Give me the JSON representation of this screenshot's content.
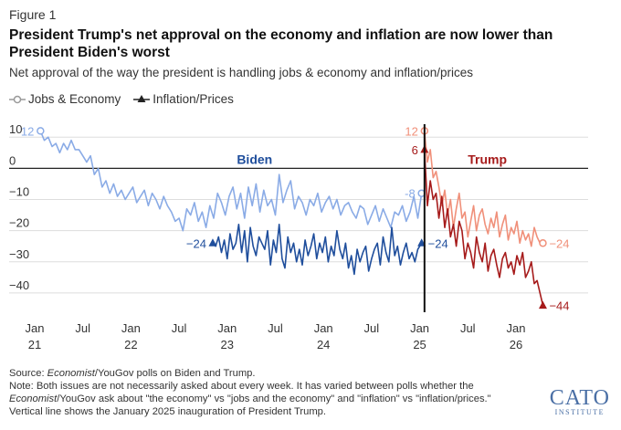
{
  "figure_label": "Figure 1",
  "title": "President Trump's net approval on the economy and inflation are now lower than President Biden's worst",
  "subtitle": "Net approval of the way the president is handling jobs & economy and inflation/prices",
  "colors": {
    "biden_jobs": "#8aabe6",
    "biden_inflation": "#1f4e9c",
    "trump_jobs": "#f0907a",
    "trump_inflation": "#a61b1b",
    "biden_label": "#1f4e9c",
    "trump_label": "#a61b1b"
  },
  "footer": {
    "source_prefix": "Source: ",
    "source_italic": "Economist",
    "source_rest": "/YouGov polls on Biden and Trump.",
    "note_1": "Note: Both issues are not necessarily asked about every week. It has varied between polls whether the",
    "note_2_italic": "Economist",
    "note_2_rest": "/YouGov ask about \"the economy\" vs \"jobs and the economy\" and \"inflation\" vs \"inflation/prices.\"",
    "note_3": "Vertical line shows the January 2025 inauguration of President Trump."
  },
  "logo": {
    "text": "CATO",
    "subtext": "INSTITUTE"
  },
  "chart_data": {
    "type": "line",
    "xlabel": "",
    "ylabel": "",
    "ylim": [
      -45,
      13
    ],
    "yticks": [
      10,
      0,
      -10,
      -20,
      -30,
      -40
    ],
    "xlim": [
      2021.0,
      2026.75
    ],
    "xticks": [
      {
        "x": 2021.0,
        "label": "Jan",
        "year": "21"
      },
      {
        "x": 2021.5,
        "label": "Jul",
        "year": ""
      },
      {
        "x": 2022.0,
        "label": "Jan",
        "year": "22"
      },
      {
        "x": 2022.5,
        "label": "Jul",
        "year": ""
      },
      {
        "x": 2023.0,
        "label": "Jan",
        "year": "23"
      },
      {
        "x": 2023.5,
        "label": "Jul",
        "year": ""
      },
      {
        "x": 2024.0,
        "label": "Jan",
        "year": "24"
      },
      {
        "x": 2024.5,
        "label": "Jul",
        "year": ""
      },
      {
        "x": 2025.0,
        "label": "Jan",
        "year": "25"
      },
      {
        "x": 2025.5,
        "label": "Jul",
        "year": ""
      },
      {
        "x": 2026.0,
        "label": "Jan",
        "year": "26"
      }
    ],
    "inauguration_x": 2025.05,
    "grid": "horizontal",
    "legend": {
      "placement": "top-left",
      "entries": [
        {
          "label": "Jobs & Economy",
          "marker": "circle"
        },
        {
          "label": "Inflation/Prices",
          "marker": "triangle"
        }
      ]
    },
    "period_labels": [
      {
        "text": "Biden",
        "x": 2023.1,
        "y": 1.5,
        "color_key": "biden_label"
      },
      {
        "text": "Trump",
        "x": 2025.5,
        "y": 1.5,
        "color_key": "trump_label"
      }
    ],
    "series": [
      {
        "period": "Biden",
        "metric": "Jobs & Economy",
        "color_key": "biden_jobs",
        "marker": "circle",
        "start_label": "12",
        "end_label": "-8",
        "x": [
          2021.06,
          2021.1,
          2021.14,
          2021.18,
          2021.22,
          2021.26,
          2021.3,
          2021.34,
          2021.38,
          2021.42,
          2021.46,
          2021.5,
          2021.54,
          2021.58,
          2021.62,
          2021.66,
          2021.7,
          2021.74,
          2021.78,
          2021.82,
          2021.86,
          2021.9,
          2021.94,
          2021.98,
          2022.02,
          2022.06,
          2022.1,
          2022.14,
          2022.18,
          2022.22,
          2022.26,
          2022.3,
          2022.34,
          2022.38,
          2022.42,
          2022.46,
          2022.5,
          2022.54,
          2022.58,
          2022.62,
          2022.66,
          2022.7,
          2022.74,
          2022.78,
          2022.82,
          2022.86,
          2022.9,
          2022.94,
          2022.98,
          2023.02,
          2023.06,
          2023.1,
          2023.14,
          2023.18,
          2023.22,
          2023.26,
          2023.3,
          2023.34,
          2023.38,
          2023.42,
          2023.46,
          2023.5,
          2023.54,
          2023.58,
          2023.62,
          2023.66,
          2023.7,
          2023.74,
          2023.78,
          2023.82,
          2023.86,
          2023.9,
          2023.94,
          2023.98,
          2024.02,
          2024.06,
          2024.1,
          2024.14,
          2024.18,
          2024.22,
          2024.26,
          2024.3,
          2024.34,
          2024.38,
          2024.42,
          2024.46,
          2024.5,
          2024.54,
          2024.58,
          2024.62,
          2024.66,
          2024.7,
          2024.74,
          2024.78,
          2024.82,
          2024.86,
          2024.9,
          2024.94,
          2024.98,
          2025.02
        ],
        "y": [
          12,
          9,
          10,
          7,
          8,
          5,
          8,
          6,
          9,
          6,
          6,
          4,
          2,
          4,
          -2,
          0,
          -6,
          -4,
          -8,
          -5,
          -9,
          -7,
          -10,
          -8,
          -6,
          -11,
          -9,
          -7,
          -12,
          -8,
          -10,
          -13,
          -9,
          -12,
          -14,
          -17,
          -16,
          -20,
          -13,
          -15,
          -11,
          -17,
          -14,
          -19,
          -12,
          -16,
          -8,
          -11,
          -15,
          -9,
          -6,
          -13,
          -8,
          -16,
          -6,
          -12,
          -5,
          -14,
          -7,
          -12,
          -10,
          -15,
          -2,
          -11,
          -7,
          -4,
          -13,
          -9,
          -11,
          -15,
          -10,
          -12,
          -8,
          -14,
          -11,
          -9,
          -13,
          -10,
          -15,
          -12,
          -11,
          -14,
          -16,
          -12,
          -13,
          -18,
          -15,
          -12,
          -17,
          -13,
          -16,
          -19,
          -14,
          -15,
          -12,
          -17,
          -14,
          -9,
          -16,
          -8
        ]
      },
      {
        "period": "Biden",
        "metric": "Inflation/Prices",
        "color_key": "biden_inflation",
        "marker": "triangle",
        "start_label": "-24",
        "end_label": "-24",
        "x": [
          2022.85,
          2022.88,
          2022.91,
          2022.94,
          2022.97,
          2023.0,
          2023.03,
          2023.06,
          2023.09,
          2023.12,
          2023.15,
          2023.18,
          2023.21,
          2023.24,
          2023.27,
          2023.3,
          2023.33,
          2023.36,
          2023.39,
          2023.42,
          2023.45,
          2023.48,
          2023.51,
          2023.54,
          2023.57,
          2023.6,
          2023.63,
          2023.66,
          2023.69,
          2023.72,
          2023.75,
          2023.78,
          2023.81,
          2023.84,
          2023.87,
          2023.9,
          2023.93,
          2023.96,
          2023.99,
          2024.02,
          2024.05,
          2024.08,
          2024.11,
          2024.14,
          2024.17,
          2024.2,
          2024.23,
          2024.26,
          2024.29,
          2024.32,
          2024.35,
          2024.38,
          2024.41,
          2024.44,
          2024.47,
          2024.5,
          2024.53,
          2024.56,
          2024.59,
          2024.62,
          2024.65,
          2024.68,
          2024.71,
          2024.74,
          2024.77,
          2024.8,
          2024.83,
          2024.86,
          2024.89,
          2024.92,
          2024.95,
          2024.98,
          2025.02
        ],
        "y": [
          -24,
          -25,
          -22,
          -27,
          -23,
          -29,
          -21,
          -26,
          -24,
          -18,
          -27,
          -20,
          -30,
          -19,
          -25,
          -28,
          -22,
          -24,
          -26,
          -20,
          -31,
          -23,
          -27,
          -18,
          -29,
          -32,
          -22,
          -27,
          -24,
          -30,
          -26,
          -31,
          -23,
          -28,
          -25,
          -21,
          -29,
          -24,
          -27,
          -22,
          -30,
          -25,
          -28,
          -20,
          -26,
          -29,
          -24,
          -32,
          -28,
          -34,
          -26,
          -30,
          -27,
          -25,
          -33,
          -29,
          -26,
          -24,
          -31,
          -22,
          -27,
          -30,
          -19,
          -28,
          -25,
          -31,
          -27,
          -24,
          -29,
          -27,
          -30,
          -26,
          -24
        ]
      },
      {
        "period": "Trump",
        "metric": "Jobs & Economy",
        "color_key": "trump_jobs",
        "marker": "circle",
        "start_label": "12",
        "end_label": "-24",
        "x": [
          2025.05,
          2025.08,
          2025.11,
          2025.14,
          2025.17,
          2025.2,
          2025.23,
          2025.26,
          2025.29,
          2025.32,
          2025.35,
          2025.38,
          2025.41,
          2025.44,
          2025.47,
          2025.5,
          2025.53,
          2025.56,
          2025.59,
          2025.62,
          2025.65,
          2025.68,
          2025.71,
          2025.74,
          2025.77,
          2025.8,
          2025.83,
          2025.86,
          2025.89,
          2025.92,
          2025.95,
          2025.98,
          2026.01,
          2026.04,
          2026.07,
          2026.1,
          2026.13,
          2026.16,
          2026.19,
          2026.22,
          2026.25,
          2026.28
        ],
        "y": [
          12,
          2,
          6,
          -3,
          -1,
          -6,
          -12,
          -7,
          -15,
          -10,
          -19,
          -13,
          -8,
          -16,
          -14,
          -22,
          -17,
          -12,
          -20,
          -15,
          -13,
          -18,
          -21,
          -16,
          -19,
          -14,
          -22,
          -18,
          -15,
          -23,
          -19,
          -21,
          -17,
          -24,
          -20,
          -23,
          -21,
          -25,
          -19,
          -22,
          -24,
          -24
        ]
      },
      {
        "period": "Trump",
        "metric": "Inflation/Prices",
        "color_key": "trump_inflation",
        "marker": "triangle",
        "start_label": "6",
        "end_label": "-44",
        "x": [
          2025.05,
          2025.08,
          2025.11,
          2025.14,
          2025.17,
          2025.2,
          2025.23,
          2025.26,
          2025.29,
          2025.32,
          2025.35,
          2025.38,
          2025.41,
          2025.44,
          2025.47,
          2025.5,
          2025.53,
          2025.56,
          2025.59,
          2025.62,
          2025.65,
          2025.68,
          2025.71,
          2025.74,
          2025.77,
          2025.8,
          2025.83,
          2025.86,
          2025.89,
          2025.92,
          2025.95,
          2025.98,
          2026.01,
          2026.04,
          2026.07,
          2026.1,
          2026.13,
          2026.16,
          2026.19,
          2026.22,
          2026.25,
          2026.28
        ],
        "y": [
          6,
          -12,
          -4,
          -10,
          -8,
          -16,
          -9,
          -19,
          -13,
          -22,
          -18,
          -25,
          -17,
          -20,
          -29,
          -24,
          -27,
          -32,
          -22,
          -27,
          -30,
          -24,
          -33,
          -28,
          -26,
          -31,
          -35,
          -29,
          -27,
          -32,
          -30,
          -34,
          -28,
          -31,
          -27,
          -35,
          -33,
          -30,
          -37,
          -36,
          -40,
          -44
        ]
      }
    ],
    "end_labels": [
      {
        "text": "12",
        "x": 2021.06,
        "y": 12,
        "side": "left",
        "color_key": "biden_jobs"
      },
      {
        "text": "-8",
        "x": 2025.02,
        "y": -8,
        "side": "left",
        "color_key": "biden_jobs"
      },
      {
        "text": "−24",
        "x": 2022.85,
        "y": -24,
        "side": "left",
        "color_key": "biden_inflation"
      },
      {
        "text": "−24",
        "x": 2025.02,
        "y": -24,
        "side": "right",
        "color_key": "biden_inflation"
      },
      {
        "text": "12",
        "x": 2025.05,
        "y": 12,
        "side": "left",
        "color_key": "trump_jobs"
      },
      {
        "text": "6",
        "x": 2025.05,
        "y": 6,
        "side": "left",
        "color_key": "trump_inflation"
      },
      {
        "text": "−24",
        "x": 2026.28,
        "y": -24,
        "side": "right",
        "color_key": "trump_jobs"
      },
      {
        "text": "−44",
        "x": 2026.28,
        "y": -44,
        "side": "right",
        "color_key": "trump_inflation"
      }
    ]
  }
}
